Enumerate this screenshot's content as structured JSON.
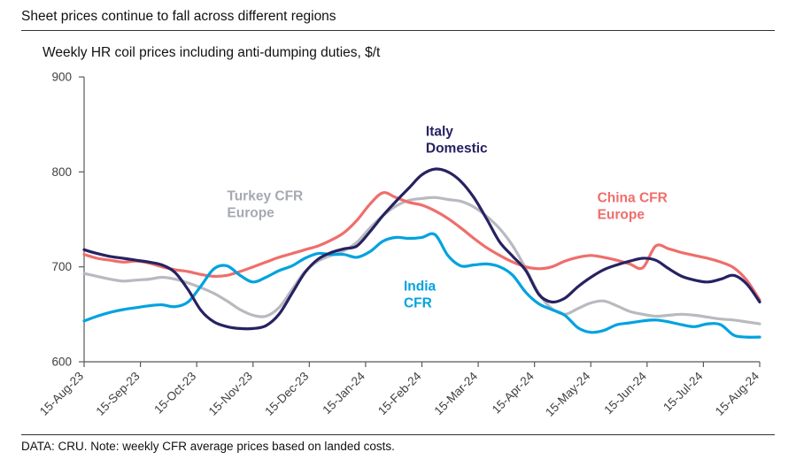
{
  "page": {
    "title": "Sheet prices continue to fall across different regions",
    "subtitle": "Weekly HR coil prices including anti-dumping duties, $/t",
    "footer": "DATA: CRU. Note: weekly CFR average prices based on landed costs."
  },
  "chart_data": {
    "type": "line",
    "title": "Weekly HR coil prices including anti-dumping duties, $/t",
    "ylabel": "$/t",
    "ylim": [
      600,
      900
    ],
    "yticks": [
      600,
      700,
      800,
      900
    ],
    "grid": false,
    "legend": "inline-colored-labels",
    "x_tick_labels": [
      "15-Aug-23",
      "15-Sep-23",
      "15-Oct-23",
      "15-Nov-23",
      "15-Dec-23",
      "15-Jan-24",
      "15-Feb-24",
      "15-Mar-24",
      "15-Apr-24",
      "15-May-24",
      "15-Jun-24",
      "15-Jul-24",
      "15-Aug-24"
    ],
    "x_unit": "weekly points, index 0-52 spanning 15-Aug-23 to 15-Aug-24",
    "series": [
      {
        "name": "Turkey CFR Europe",
        "color": "#b9babf",
        "values": [
          693,
          690,
          687,
          685,
          686,
          687,
          689,
          687,
          683,
          678,
          672,
          664,
          655,
          649,
          648,
          657,
          676,
          695,
          706,
          712,
          717,
          726,
          741,
          754,
          764,
          770,
          772,
          773,
          771,
          769,
          763,
          753,
          740,
          722,
          698,
          672,
          656,
          650,
          656,
          662,
          664,
          659,
          653,
          650,
          648,
          649,
          650,
          649,
          647,
          645,
          644,
          642,
          640
        ]
      },
      {
        "name": "China CFR Europe",
        "color": "#ef6e6b",
        "values": [
          713,
          709,
          707,
          705,
          706,
          704,
          700,
          697,
          695,
          692,
          690,
          691,
          695,
          700,
          705,
          710,
          714,
          718,
          722,
          728,
          736,
          749,
          766,
          778,
          773,
          768,
          765,
          759,
          751,
          741,
          730,
          720,
          712,
          705,
          700,
          698,
          700,
          706,
          710,
          712,
          710,
          707,
          703,
          699,
          722,
          719,
          715,
          712,
          709,
          705,
          699,
          686,
          665
        ]
      },
      {
        "name": "India CFR",
        "color": "#00a2e0",
        "values": [
          643,
          648,
          652,
          655,
          657,
          659,
          660,
          658,
          663,
          680,
          698,
          701,
          691,
          684,
          689,
          696,
          701,
          709,
          714,
          713,
          713,
          710,
          716,
          727,
          731,
          730,
          731,
          734,
          712,
          701,
          702,
          703,
          700,
          691,
          673,
          661,
          655,
          649,
          636,
          631,
          633,
          639,
          641,
          643,
          644,
          642,
          639,
          637,
          640,
          639,
          628,
          626,
          626
        ]
      },
      {
        "name": "Italy Domestic",
        "color": "#262262",
        "values": [
          718,
          714,
          711,
          709,
          707,
          705,
          702,
          694,
          676,
          654,
          642,
          637,
          635,
          635,
          638,
          650,
          672,
          694,
          708,
          715,
          719,
          722,
          737,
          754,
          769,
          783,
          797,
          803,
          800,
          790,
          773,
          750,
          726,
          711,
          696,
          671,
          663,
          667,
          679,
          689,
          697,
          702,
          706,
          709,
          707,
          698,
          690,
          686,
          684,
          687,
          691,
          682,
          663
        ]
      }
    ],
    "annotations": [
      {
        "lines": [
          "Italy",
          "Domestic"
        ],
        "color": "#262262",
        "x_week": 26.3,
        "y_value": 838
      },
      {
        "lines": [
          "Turkey CFR",
          "Europe"
        ],
        "color": "#a6a9b3",
        "x_week": 11.0,
        "y_value": 770
      },
      {
        "lines": [
          "China CFR",
          "Europe"
        ],
        "color": "#ef6e6b",
        "x_week": 39.5,
        "y_value": 768
      },
      {
        "lines": [
          "India",
          "CFR"
        ],
        "color": "#00a2e0",
        "x_week": 24.6,
        "y_value": 675
      }
    ]
  }
}
